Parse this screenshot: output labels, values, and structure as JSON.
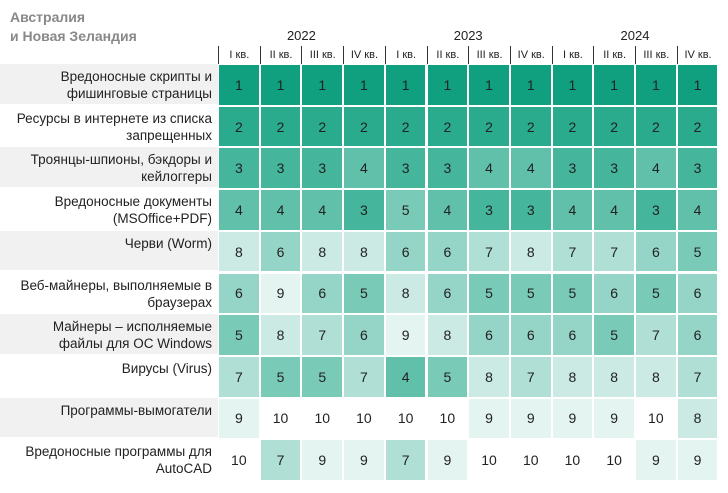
{
  "title": "Австралия\nи Новая Зеландия",
  "years": [
    "2022",
    "2023",
    "2024"
  ],
  "quarters": [
    "I кв.",
    "II кв.",
    "III кв.",
    "IV кв.",
    "I кв.",
    "II кв.",
    "III кв.",
    "IV кв.",
    "I кв.",
    "II кв.",
    "III кв.",
    "IV кв."
  ],
  "color_scale": [
    "#10a080",
    "#ffffff"
  ],
  "rows": [
    {
      "label": "Вредоносные скрипты и фишинговые страницы",
      "values": [
        1,
        1,
        1,
        1,
        1,
        1,
        1,
        1,
        1,
        1,
        1,
        1
      ]
    },
    {
      "label": "Ресурсы в интернете из списка запрещенных",
      "values": [
        2,
        2,
        2,
        2,
        2,
        2,
        2,
        2,
        2,
        2,
        2,
        2
      ]
    },
    {
      "label": "Троянцы-шпионы, бэкдоры и кейлоггеры",
      "values": [
        3,
        3,
        3,
        4,
        3,
        3,
        4,
        4,
        3,
        3,
        4,
        3
      ]
    },
    {
      "label": "Вредоносные документы (MSOffice+PDF)",
      "values": [
        4,
        4,
        4,
        3,
        5,
        4,
        3,
        3,
        4,
        4,
        3,
        4
      ]
    },
    {
      "label": "Черви (Worm)",
      "values": [
        8,
        6,
        8,
        8,
        6,
        6,
        7,
        8,
        7,
        7,
        6,
        5
      ]
    },
    {
      "label": "Веб-майнеры, выполняемые в браузерах",
      "values": [
        6,
        9,
        6,
        5,
        8,
        6,
        5,
        5,
        5,
        6,
        5,
        6
      ]
    },
    {
      "label": "Майнеры – исполняемые файлы для ОС Windows",
      "values": [
        5,
        8,
        7,
        6,
        9,
        8,
        6,
        6,
        6,
        5,
        7,
        6
      ]
    },
    {
      "label": "Вирусы (Virus)",
      "values": [
        7,
        5,
        5,
        7,
        4,
        5,
        8,
        7,
        8,
        8,
        8,
        7
      ]
    },
    {
      "label": "Программы-вымогатели",
      "values": [
        9,
        10,
        10,
        10,
        10,
        10,
        9,
        9,
        9,
        9,
        10,
        8
      ]
    },
    {
      "label": "Вредоносные программы для AutoCAD",
      "values": [
        10,
        7,
        9,
        9,
        7,
        9,
        10,
        10,
        10,
        10,
        9,
        9
      ]
    }
  ]
}
